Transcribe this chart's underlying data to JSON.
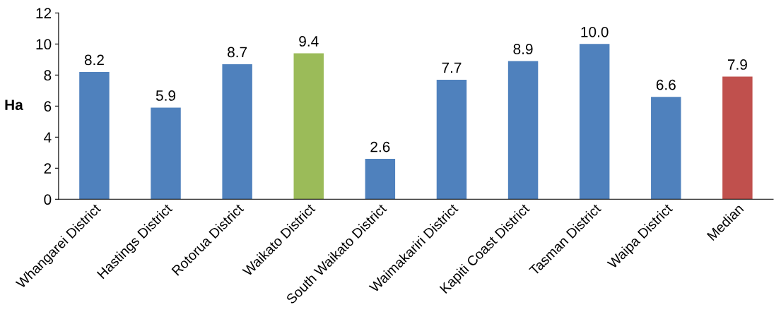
{
  "chart_data": {
    "type": "bar",
    "ylabel": "Ha",
    "categories": [
      "Whangarei District",
      "Hastings District",
      "Rotorua District",
      "Waikato District",
      "South Waikato District",
      "Waimakariri District",
      "Kapiti Coast District",
      "Tasman District",
      "Waipa District",
      "Median"
    ],
    "values": [
      8.2,
      5.9,
      8.7,
      9.4,
      2.6,
      7.7,
      8.9,
      10.0,
      6.6,
      7.9
    ],
    "value_labels": [
      "8.2",
      "5.9",
      "8.7",
      "9.4",
      "2.6",
      "7.7",
      "8.9",
      "10.0",
      "6.6",
      "7.9"
    ],
    "colors": [
      "#4f81bd",
      "#4f81bd",
      "#4f81bd",
      "#9bbb59",
      "#4f81bd",
      "#4f81bd",
      "#4f81bd",
      "#4f81bd",
      "#4f81bd",
      "#c0504d"
    ],
    "ylim": [
      0,
      12
    ],
    "yticks": [
      0,
      2,
      4,
      6,
      8,
      10,
      12
    ],
    "grid": false
  }
}
